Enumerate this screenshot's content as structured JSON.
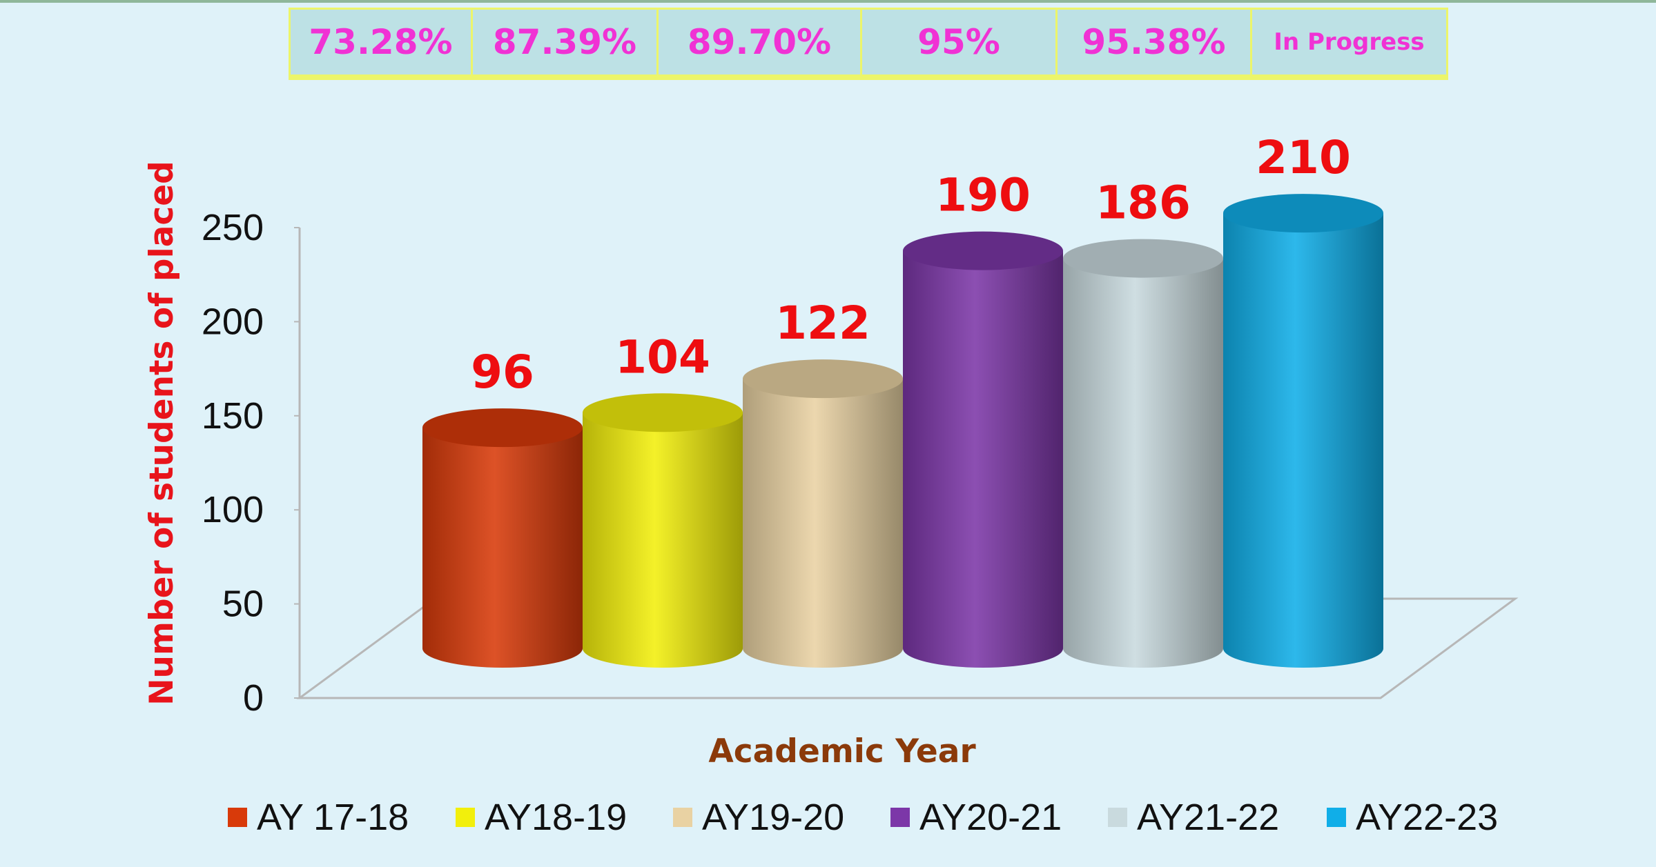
{
  "percent_row": [
    "73.28%",
    "87.39%",
    "89.70%",
    "95%",
    "95.38%",
    "In Progress"
  ],
  "chart_data": {
    "type": "bar",
    "style": "3d-cylinder",
    "categories": [
      "AY 17-18",
      "AY18-19",
      "AY19-20",
      "AY20-21",
      "AY21-22",
      "AY22-23"
    ],
    "values": [
      96,
      104,
      122,
      190,
      186,
      210
    ],
    "data_labels": [
      "96",
      "104",
      "122",
      "190",
      "186",
      "210"
    ],
    "colors": [
      "#d83a0a",
      "#f2ef0c",
      "#e9d2a3",
      "#7c37a8",
      "#c9dade",
      "#10aee8"
    ],
    "ylabel": "Number of students of placed",
    "xlabel": "Academic Year",
    "ylim": [
      0,
      250
    ],
    "yticks": [
      "0",
      "50",
      "100",
      "150",
      "200",
      "250"
    ],
    "legend_position": "bottom",
    "ylabel_color": "#e8141b",
    "xlabel_color": "#8b3a0a",
    "data_label_color": "#ee0d10",
    "percent_color": "#f032d4"
  }
}
